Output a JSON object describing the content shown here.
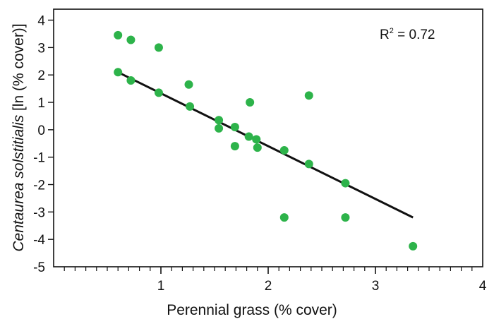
{
  "chart_data": {
    "type": "scatter",
    "xlabel": "Perennial grass (% cover)",
    "ylabel_italic": "Centaurea solstitialis",
    "ylabel_rest": " [ln (% cover)]",
    "xlim": [
      0,
      4
    ],
    "ylim": [
      -5,
      4.4
    ],
    "x_major_ticks": [
      1,
      2,
      3,
      4
    ],
    "x_minor_step": 0.1,
    "y_ticks": [
      4,
      3,
      2,
      1,
      0,
      -1,
      -2,
      -3,
      -4,
      -5
    ],
    "y_tick_labels": [
      "4",
      "3",
      "2",
      "1",
      "0",
      "-1",
      "-2",
      "-3",
      "-4",
      "-5"
    ],
    "annotation": {
      "r2_prefix": "R",
      "r2_sup": "2",
      "r2_suffix": " = 0.72"
    },
    "points": [
      {
        "x": 0.6,
        "y": 3.45
      },
      {
        "x": 0.72,
        "y": 3.28
      },
      {
        "x": 0.98,
        "y": 3.0
      },
      {
        "x": 0.6,
        "y": 2.1
      },
      {
        "x": 0.72,
        "y": 1.8
      },
      {
        "x": 0.98,
        "y": 1.35
      },
      {
        "x": 1.26,
        "y": 1.65
      },
      {
        "x": 1.27,
        "y": 0.85
      },
      {
        "x": 1.54,
        "y": 0.35
      },
      {
        "x": 1.54,
        "y": 0.05
      },
      {
        "x": 1.69,
        "y": 0.1
      },
      {
        "x": 1.69,
        "y": -0.6
      },
      {
        "x": 1.83,
        "y": 1.0
      },
      {
        "x": 1.82,
        "y": -0.25
      },
      {
        "x": 1.89,
        "y": -0.35
      },
      {
        "x": 1.9,
        "y": -0.65
      },
      {
        "x": 2.15,
        "y": -0.75
      },
      {
        "x": 2.15,
        "y": -3.2
      },
      {
        "x": 2.38,
        "y": 1.25
      },
      {
        "x": 2.38,
        "y": -1.25
      },
      {
        "x": 2.72,
        "y": -1.95
      },
      {
        "x": 2.72,
        "y": -3.2
      },
      {
        "x": 3.35,
        "y": -4.25
      }
    ],
    "trendline": {
      "x": [
        0.6,
        3.35
      ],
      "y": [
        2.1,
        -3.2
      ]
    },
    "colors": {
      "point": "#2db34a",
      "line": "#111111",
      "axis": "#111111"
    }
  }
}
